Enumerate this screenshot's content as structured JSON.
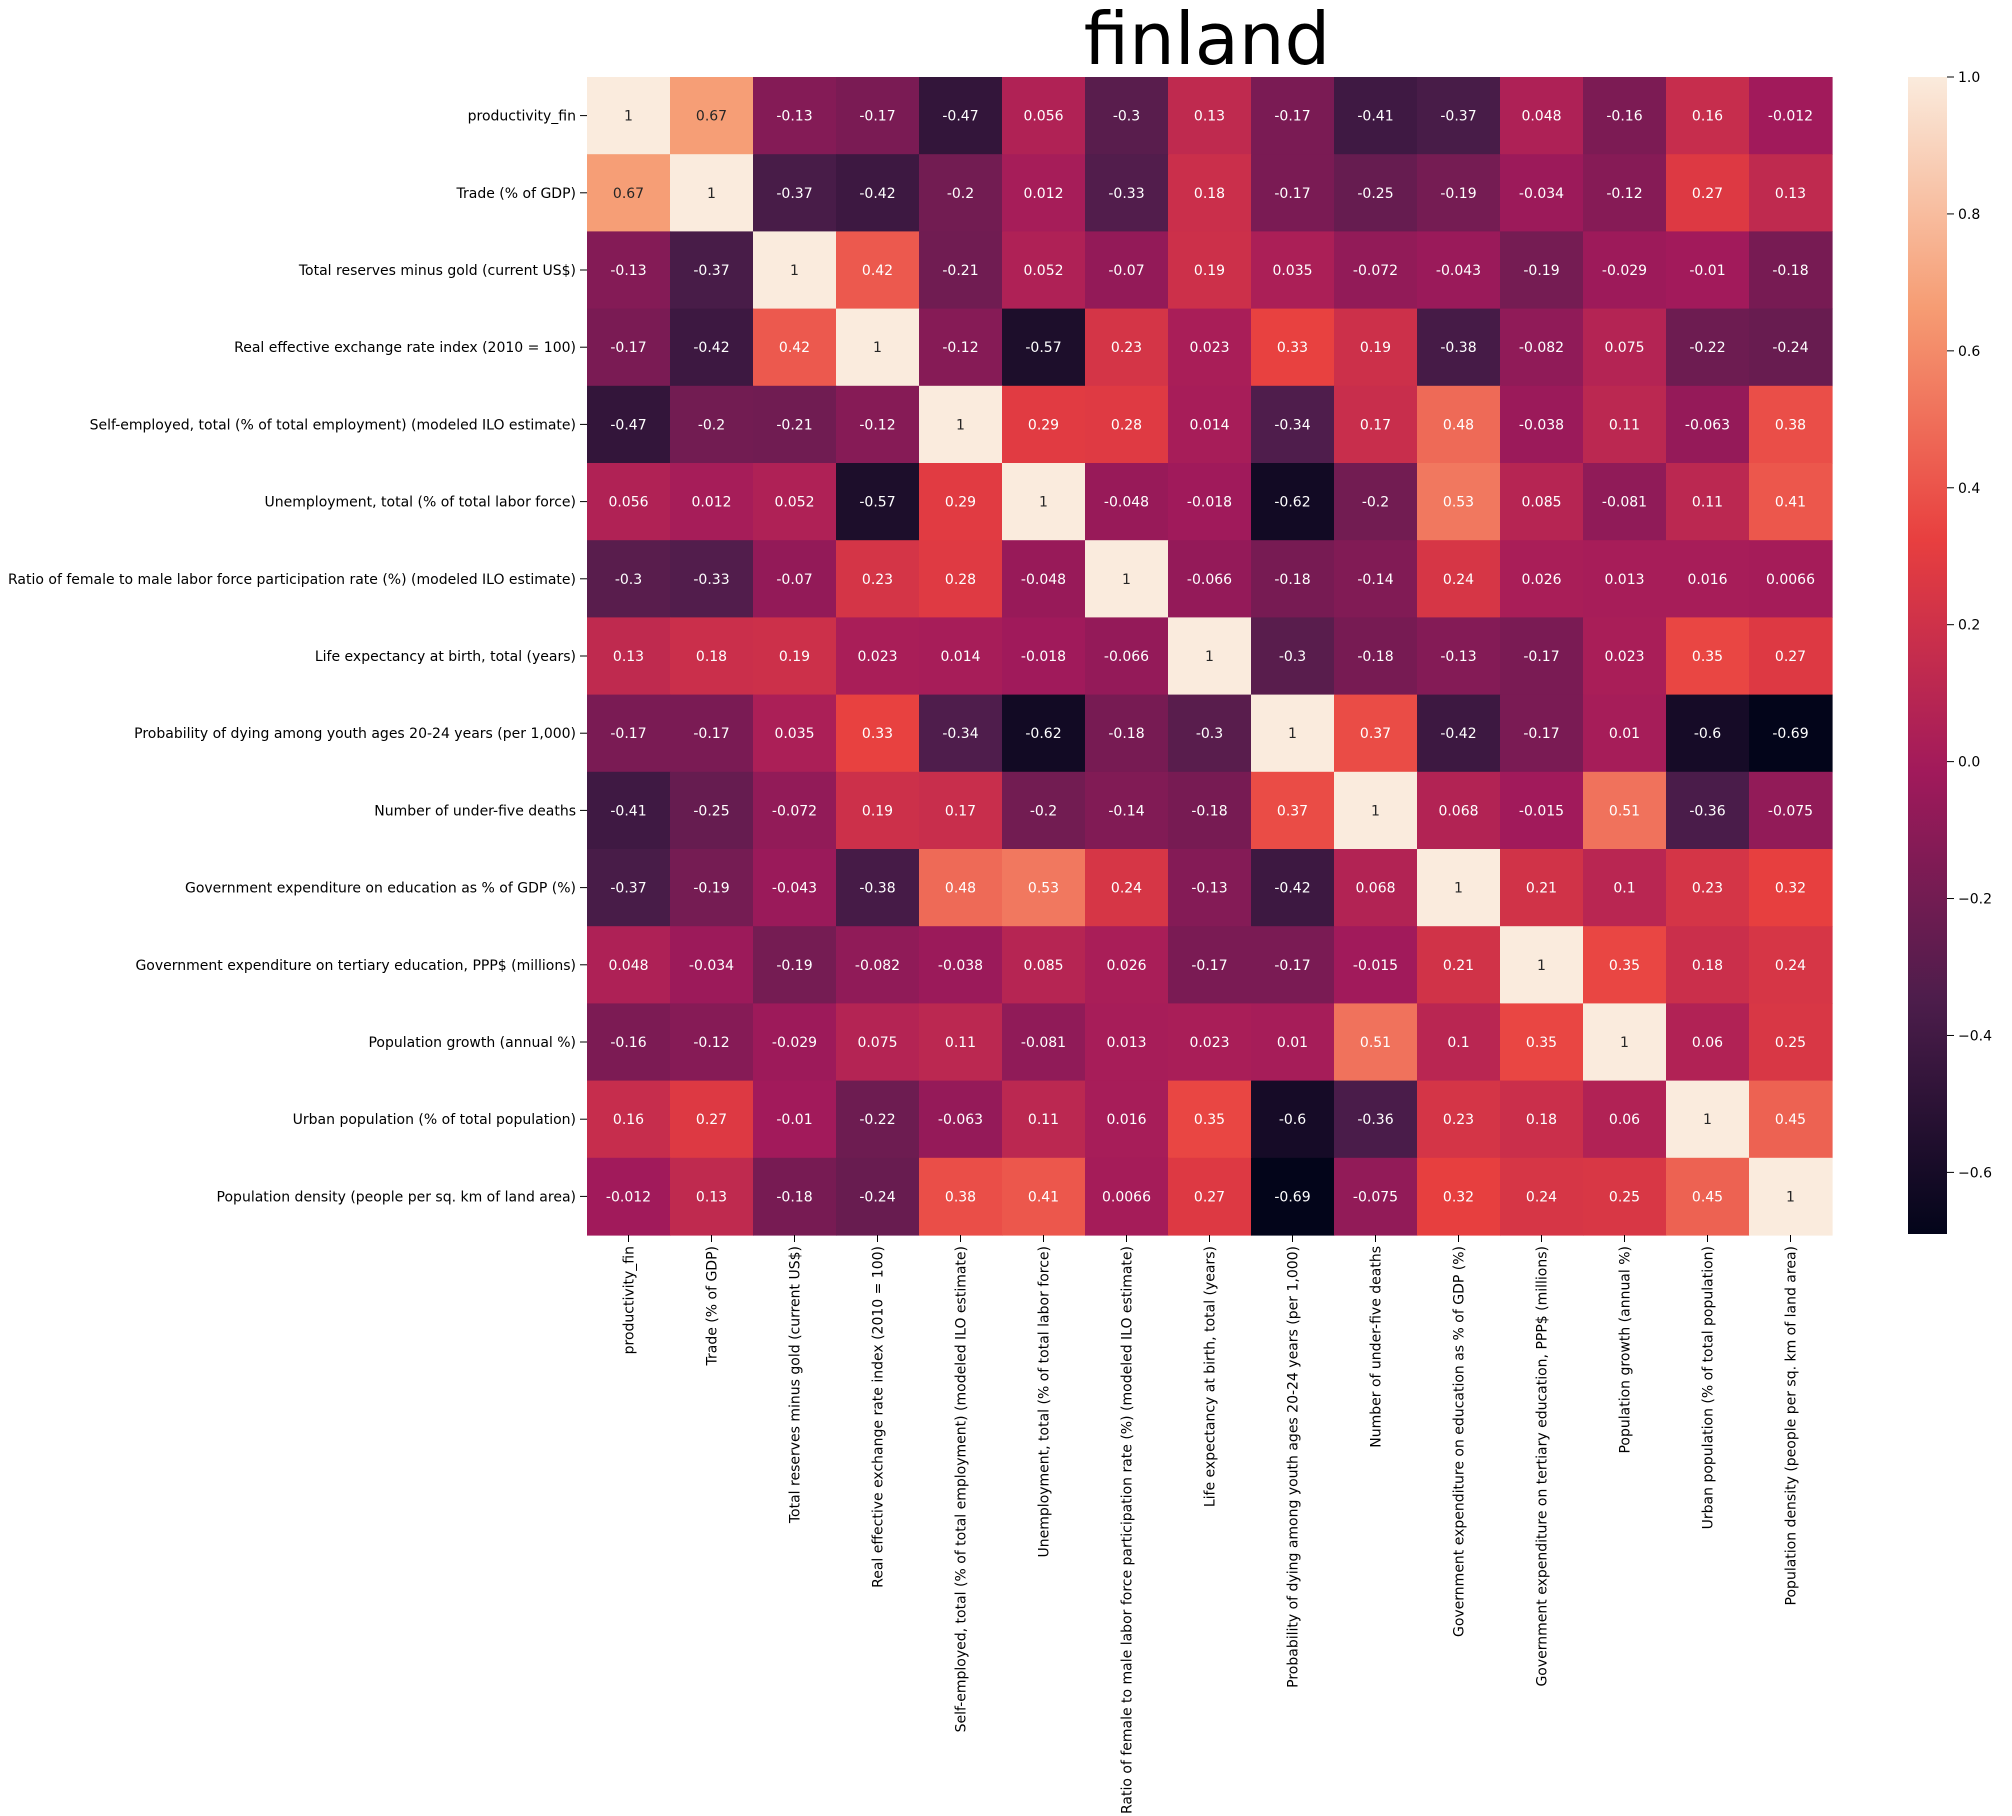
{
  "chart_data": {
    "type": "heatmap",
    "title": "finland",
    "labels": [
      "productivity_fin",
      "Trade (% of GDP)",
      "Total reserves minus gold (current US$)",
      "Real effective exchange rate index (2010 = 100)",
      "Self-employed, total (% of total employment) (modeled ILO estimate)",
      "Unemployment, total (% of total labor force)",
      "Ratio of female to male labor force participation rate (%) (modeled ILO estimate)",
      "Life expectancy at birth, total (years)",
      "Probability of dying among youth ages 20-24 years (per 1,000)",
      "Number of under-five deaths",
      "Government expenditure on education as % of GDP (%)",
      "Government expenditure on tertiary education, PPP$ (millions)",
      "Population growth (annual %)",
      "Urban population (% of total population)",
      "Population density (people per sq. km of land area)"
    ],
    "matrix": [
      [
        1,
        0.67,
        -0.13,
        -0.17,
        -0.47,
        0.056,
        -0.3,
        0.13,
        -0.17,
        -0.41,
        -0.37,
        0.048,
        -0.16,
        0.16,
        -0.012
      ],
      [
        0.67,
        1,
        -0.37,
        -0.42,
        -0.2,
        0.012,
        -0.33,
        0.18,
        -0.17,
        -0.25,
        -0.19,
        -0.034,
        -0.12,
        0.27,
        0.13
      ],
      [
        -0.13,
        -0.37,
        1,
        0.42,
        -0.21,
        0.052,
        -0.07,
        0.19,
        0.035,
        -0.072,
        -0.043,
        -0.19,
        -0.029,
        -0.01,
        -0.18
      ],
      [
        -0.17,
        -0.42,
        0.42,
        1,
        -0.12,
        -0.57,
        0.23,
        0.023,
        0.33,
        0.19,
        -0.38,
        -0.082,
        0.075,
        -0.22,
        -0.24
      ],
      [
        -0.47,
        -0.2,
        -0.21,
        -0.12,
        1,
        0.29,
        0.28,
        0.014,
        -0.34,
        0.17,
        0.48,
        -0.038,
        0.11,
        -0.063,
        0.38
      ],
      [
        0.056,
        0.012,
        0.052,
        -0.57,
        0.29,
        1,
        -0.048,
        -0.018,
        -0.62,
        -0.2,
        0.53,
        0.085,
        -0.081,
        0.11,
        0.41
      ],
      [
        -0.3,
        -0.33,
        -0.07,
        0.23,
        0.28,
        -0.048,
        1,
        -0.066,
        -0.18,
        -0.14,
        0.24,
        0.026,
        0.013,
        0.016,
        0.0066
      ],
      [
        0.13,
        0.18,
        0.19,
        0.023,
        0.014,
        -0.018,
        -0.066,
        1,
        -0.3,
        -0.18,
        -0.13,
        -0.17,
        0.023,
        0.35,
        0.27
      ],
      [
        -0.17,
        -0.17,
        0.035,
        0.33,
        -0.34,
        -0.62,
        -0.18,
        -0.3,
        1,
        0.37,
        -0.42,
        -0.17,
        0.01,
        -0.6,
        -0.69
      ],
      [
        -0.41,
        -0.25,
        -0.072,
        0.19,
        0.17,
        -0.2,
        -0.14,
        -0.18,
        0.37,
        1,
        0.068,
        -0.015,
        0.51,
        -0.36,
        -0.075
      ],
      [
        -0.37,
        -0.19,
        -0.043,
        -0.38,
        0.48,
        0.53,
        0.24,
        -0.13,
        -0.42,
        0.068,
        1,
        0.21,
        0.1,
        0.23,
        0.32
      ],
      [
        0.048,
        -0.034,
        -0.19,
        -0.082,
        -0.038,
        0.085,
        0.026,
        -0.17,
        -0.17,
        -0.015,
        0.21,
        1,
        0.35,
        0.18,
        0.24
      ],
      [
        -0.16,
        -0.12,
        -0.029,
        0.075,
        0.11,
        -0.081,
        0.013,
        0.023,
        0.01,
        0.51,
        0.1,
        0.35,
        1,
        0.06,
        0.25
      ],
      [
        0.16,
        0.27,
        -0.01,
        -0.22,
        -0.063,
        0.11,
        0.016,
        0.35,
        -0.6,
        -0.36,
        0.23,
        0.18,
        0.06,
        1,
        0.45
      ],
      [
        -0.012,
        0.13,
        -0.18,
        -0.24,
        0.38,
        0.41,
        0.0066,
        0.27,
        -0.69,
        -0.075,
        0.32,
        0.24,
        0.25,
        0.45,
        1
      ]
    ],
    "colorbar": {
      "min": -0.69,
      "max": 1.0,
      "ticks": [
        -0.6,
        -0.4,
        -0.2,
        0.0,
        0.2,
        0.4,
        0.6,
        0.8,
        1.0
      ],
      "tick_labels": [
        "−0.6",
        "−0.4",
        "−0.2",
        "0.0",
        "0.2",
        "0.4",
        "0.6",
        "0.8",
        "1.0"
      ],
      "colormap": "rocket",
      "stops": [
        "#03051a",
        "#4c1d4b",
        "#a11a5b",
        "#e83f3f",
        "#f69c73",
        "#faebdd"
      ]
    },
    "annotation_colors": {
      "light_text": "#ffffff",
      "dark_text": "#262626"
    },
    "grid": false
  }
}
